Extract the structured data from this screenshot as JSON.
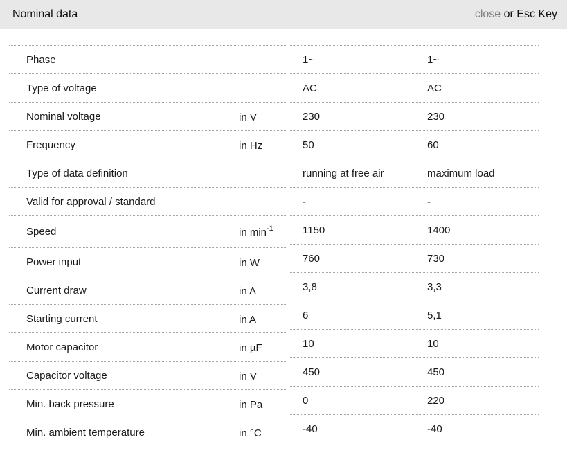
{
  "header": {
    "title": "Nominal data",
    "close_label": "close",
    "close_suffix": " or Esc Key"
  },
  "colors": {
    "header_bg": "#e8e8e8",
    "border_dot": "#a6a6a6",
    "close_gray": "#808080",
    "text": "#1a1a1a"
  },
  "table": {
    "rows": [
      {
        "label": "Phase",
        "unit": "",
        "unit_sup": "",
        "v1": "1~",
        "v2": "1~",
        "tall": false
      },
      {
        "label": "Type of voltage",
        "unit": "",
        "unit_sup": "",
        "v1": "AC",
        "v2": "AC",
        "tall": false
      },
      {
        "label": "Nominal voltage",
        "unit": "in V",
        "unit_sup": "",
        "v1": "230",
        "v2": "230",
        "tall": false
      },
      {
        "label": "Frequency",
        "unit": "in Hz",
        "unit_sup": "",
        "v1": "50",
        "v2": "60",
        "tall": false
      },
      {
        "label": "Type of data definition",
        "unit": "",
        "unit_sup": "",
        "v1": "running at free air",
        "v2": "maximum load",
        "tall": false
      },
      {
        "label": "Valid for approval / standard",
        "unit": "",
        "unit_sup": "",
        "v1": "-",
        "v2": "-",
        "tall": false
      },
      {
        "label": "Speed",
        "unit": "in min",
        "unit_sup": "-1",
        "v1": "1150",
        "v2": "1400",
        "tall": true
      },
      {
        "label": "Power input",
        "unit": "in W",
        "unit_sup": "",
        "v1": "760",
        "v2": "730",
        "tall": false
      },
      {
        "label": "Current draw",
        "unit": "in A",
        "unit_sup": "",
        "v1": "3,8",
        "v2": "3,3",
        "tall": false
      },
      {
        "label": "Starting current",
        "unit": "in A",
        "unit_sup": "",
        "v1": "6",
        "v2": "5,1",
        "tall": false
      },
      {
        "label": "Motor capacitor",
        "unit": "in µF",
        "unit_sup": "",
        "v1": "10",
        "v2": "10",
        "tall": false
      },
      {
        "label": "Capacitor voltage",
        "unit": "in V",
        "unit_sup": "",
        "v1": "450",
        "v2": "450",
        "tall": false
      },
      {
        "label": "Min. back pressure",
        "unit": "in Pa",
        "unit_sup": "",
        "v1": "0",
        "v2": "220",
        "tall": false
      },
      {
        "label": "Min. ambient temperature",
        "unit": "in °C",
        "unit_sup": "",
        "v1": "-40",
        "v2": "-40",
        "tall": false
      }
    ]
  }
}
